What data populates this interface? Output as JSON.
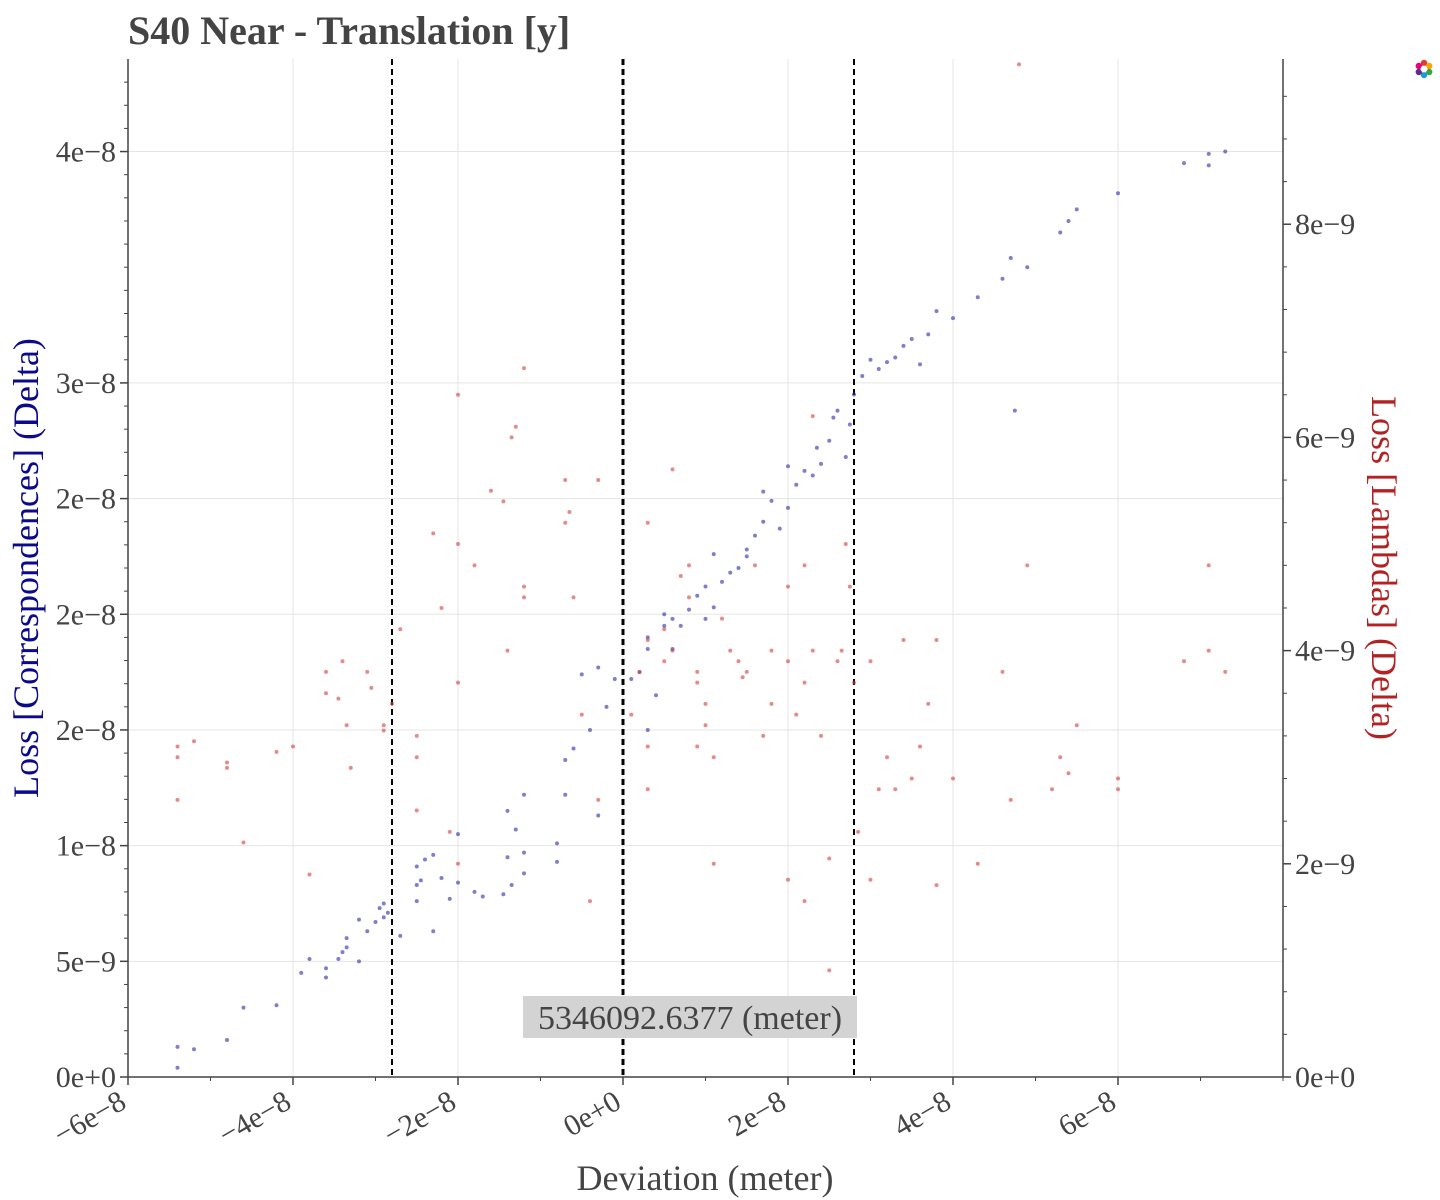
{
  "chart_data": {
    "type": "scatter",
    "title": "S40 Near - Translation [y]",
    "xlabel": "Deviation (meter)",
    "ylabel_left": "Loss [Correspondences] (Delta)",
    "ylabel_right": "Loss [Lambdas] (Delta)",
    "xlim": [
      -6e-08,
      8e-08
    ],
    "ylim_left": [
      0,
      4.4e-08
    ],
    "ylim_right": [
      0,
      9.55e-09
    ],
    "x_ticks": [
      -6e-08,
      -4e-08,
      -2e-08,
      0,
      2e-08,
      4e-08,
      6e-08
    ],
    "x_tick_labels": [
      "−6e−8",
      "−4e−8",
      "−2e−8",
      "0e+0",
      "2e−8",
      "4e−8",
      "6e−8"
    ],
    "y_left_ticks": [
      0,
      5e-09,
      1e-08,
      1.5e-08,
      2e-08,
      2.5e-08,
      3e-08,
      4e-08
    ],
    "y_left_tick_labels": [
      "0e+0",
      "5e−9",
      "1e−8",
      "2e−8",
      "2e−8",
      "2e−8",
      "3e−8",
      "4e−8"
    ],
    "y_right_ticks": [
      0,
      2e-09,
      4e-09,
      6e-09,
      8e-09
    ],
    "y_right_tick_labels": [
      "0e+0",
      "2e−9",
      "4e−9",
      "6e−9",
      "8e−9"
    ],
    "grid": true,
    "vlines": [
      {
        "x": -2.8e-08,
        "style": "dashed"
      },
      {
        "x": 0,
        "style": "dashed"
      },
      {
        "x": 2.8e-08,
        "style": "dashed"
      }
    ],
    "annotation": {
      "text": "5346092.6377 (meter)",
      "x": 0
    },
    "colors": {
      "correspondences": "#2a2aa8",
      "lambdas": "#d04040",
      "left_axis_title": "#0a0a8a",
      "right_axis_title": "#b22222"
    },
    "series": [
      {
        "name": "Loss [Correspondences] (Delta)",
        "axis": "left",
        "points": [
          [
            -5.4e-08,
            4e-10
          ],
          [
            -5.4e-08,
            1.3e-09
          ],
          [
            -5.2e-08,
            1.2e-09
          ],
          [
            -4.8e-08,
            1.6e-09
          ],
          [
            -4.6e-08,
            3e-09
          ],
          [
            -4.2e-08,
            3.1e-09
          ],
          [
            -3.9e-08,
            4.5e-09
          ],
          [
            -3.8e-08,
            5.1e-09
          ],
          [
            -3.6e-08,
            4.7e-09
          ],
          [
            -3.6e-08,
            4.3e-09
          ],
          [
            -3.45e-08,
            5.1e-09
          ],
          [
            -3.4e-08,
            5.4e-09
          ],
          [
            -3.35e-08,
            6e-09
          ],
          [
            -3.35e-08,
            5.6e-09
          ],
          [
            -3.2e-08,
            5e-09
          ],
          [
            -3.2e-08,
            6.8e-09
          ],
          [
            -3.1e-08,
            6.3e-09
          ],
          [
            -3e-08,
            6.7e-09
          ],
          [
            -2.95e-08,
            7.3e-09
          ],
          [
            -2.9e-08,
            7.5e-09
          ],
          [
            -2.9e-08,
            6.9e-09
          ],
          [
            -2.85e-08,
            7.1e-09
          ],
          [
            -2.7e-08,
            6.1e-09
          ],
          [
            -2.5e-08,
            7.6e-09
          ],
          [
            -2.5e-08,
            8.3e-09
          ],
          [
            -2.5e-08,
            9.1e-09
          ],
          [
            -2.45e-08,
            8.5e-09
          ],
          [
            -2.4e-08,
            9.4e-09
          ],
          [
            -2.3e-08,
            9.6e-09
          ],
          [
            -2.3e-08,
            6.3e-09
          ],
          [
            -2.2e-08,
            8.6e-09
          ],
          [
            -2.1e-08,
            7.7e-09
          ],
          [
            -2e-08,
            8.4e-09
          ],
          [
            -2e-08,
            1.05e-08
          ],
          [
            -1.8e-08,
            8e-09
          ],
          [
            -1.7e-08,
            7.8e-09
          ],
          [
            -1.45e-08,
            7.9e-09
          ],
          [
            -1.4e-08,
            9.5e-09
          ],
          [
            -1.4e-08,
            1.15e-08
          ],
          [
            -1.35e-08,
            8.3e-09
          ],
          [
            -1.3e-08,
            1.07e-08
          ],
          [
            -1.2e-08,
            8.8e-09
          ],
          [
            -1.2e-08,
            9.7e-09
          ],
          [
            -1.2e-08,
            1.22e-08
          ],
          [
            -8e-09,
            9.3e-09
          ],
          [
            -8e-09,
            1.01e-08
          ],
          [
            -7e-09,
            1.37e-08
          ],
          [
            -7e-09,
            1.22e-08
          ],
          [
            -6e-09,
            1.42e-08
          ],
          [
            -5e-09,
            1.74e-08
          ],
          [
            -4e-09,
            1.5e-08
          ],
          [
            -3e-09,
            1.13e-08
          ],
          [
            -3e-09,
            1.77e-08
          ],
          [
            -2e-09,
            1.6e-08
          ],
          [
            -1e-09,
            1.72e-08
          ],
          [
            1e-09,
            1.72e-08
          ],
          [
            2e-09,
            1.75e-08
          ],
          [
            3e-09,
            1.85e-08
          ],
          [
            3e-09,
            1.9e-08
          ],
          [
            3e-09,
            1.5e-08
          ],
          [
            4e-09,
            1.65e-08
          ],
          [
            5e-09,
            1.95e-08
          ],
          [
            5e-09,
            2e-08
          ],
          [
            6e-09,
            1.85e-08
          ],
          [
            6e-09,
            1.98e-08
          ],
          [
            7e-09,
            1.95e-08
          ],
          [
            8e-09,
            2.02e-08
          ],
          [
            9e-09,
            2.08e-08
          ],
          [
            1e-08,
            1.98e-08
          ],
          [
            1e-08,
            2.12e-08
          ],
          [
            1.1e-08,
            2.03e-08
          ],
          [
            1.1e-08,
            2.26e-08
          ],
          [
            1.2e-08,
            2.14e-08
          ],
          [
            1.3e-08,
            2.18e-08
          ],
          [
            1.4e-08,
            2.2e-08
          ],
          [
            1.5e-08,
            2.28e-08
          ],
          [
            1.5e-08,
            2.25e-08
          ],
          [
            1.6e-08,
            2.34e-08
          ],
          [
            1.7e-08,
            2.4e-08
          ],
          [
            1.7e-08,
            2.53e-08
          ],
          [
            1.8e-08,
            2.49e-08
          ],
          [
            1.9e-08,
            2.37e-08
          ],
          [
            2e-08,
            2.46e-08
          ],
          [
            2e-08,
            2.64e-08
          ],
          [
            2.1e-08,
            2.56e-08
          ],
          [
            2.2e-08,
            2.62e-08
          ],
          [
            2.3e-08,
            2.6e-08
          ],
          [
            2.35e-08,
            2.72e-08
          ],
          [
            2.4e-08,
            2.65e-08
          ],
          [
            2.5e-08,
            2.75e-08
          ],
          [
            2.55e-08,
            2.85e-08
          ],
          [
            2.6e-08,
            2.88e-08
          ],
          [
            2.7e-08,
            2.68e-08
          ],
          [
            2.75e-08,
            2.82e-08
          ],
          [
            2.8e-08,
            2.95e-08
          ],
          [
            2.9e-08,
            3.03e-08
          ],
          [
            3e-08,
            3.1e-08
          ],
          [
            3.1e-08,
            3.06e-08
          ],
          [
            3.2e-08,
            3.09e-08
          ],
          [
            3.3e-08,
            3.11e-08
          ],
          [
            3.4e-08,
            3.16e-08
          ],
          [
            3.5e-08,
            3.19e-08
          ],
          [
            3.6e-08,
            3.08e-08
          ],
          [
            3.7e-08,
            3.21e-08
          ],
          [
            3.8e-08,
            3.31e-08
          ],
          [
            4e-08,
            3.28e-08
          ],
          [
            4.3e-08,
            3.37e-08
          ],
          [
            4.6e-08,
            3.45e-08
          ],
          [
            4.7e-08,
            3.54e-08
          ],
          [
            4.75e-08,
            2.88e-08
          ],
          [
            4.9e-08,
            3.5e-08
          ],
          [
            5.3e-08,
            3.65e-08
          ],
          [
            5.4e-08,
            3.7e-08
          ],
          [
            5.5e-08,
            3.75e-08
          ],
          [
            6e-08,
            3.82e-08
          ],
          [
            6.8e-08,
            3.95e-08
          ],
          [
            7.1e-08,
            3.94e-08
          ],
          [
            7.1e-08,
            3.99e-08
          ],
          [
            7.3e-08,
            4e-08
          ]
        ]
      },
      {
        "name": "Loss [Lambdas] (Delta)",
        "axis": "right",
        "points": [
          [
            -5.4e-08,
            3.1e-09
          ],
          [
            -5.4e-08,
            3e-09
          ],
          [
            -5.2e-08,
            3.15e-09
          ],
          [
            -5.4e-08,
            2.6e-09
          ],
          [
            -4.8e-08,
            2.9e-09
          ],
          [
            -4.8e-08,
            2.95e-09
          ],
          [
            -4.6e-08,
            2.2e-09
          ],
          [
            -4.2e-08,
            3.05e-09
          ],
          [
            -4e-08,
            3.1e-09
          ],
          [
            -3.8e-08,
            1.9e-09
          ],
          [
            -3.6e-08,
            3.6e-09
          ],
          [
            -3.6e-08,
            3.8e-09
          ],
          [
            -3.45e-08,
            3.55e-09
          ],
          [
            -3.4e-08,
            3.9e-09
          ],
          [
            -3.35e-08,
            3.3e-09
          ],
          [
            -3.3e-08,
            2.9e-09
          ],
          [
            -3.1e-08,
            3.8e-09
          ],
          [
            -3.05e-08,
            3.65e-09
          ],
          [
            -2.9e-08,
            3.25e-09
          ],
          [
            -2.9e-08,
            3.3e-09
          ],
          [
            -2.8e-08,
            3.5e-09
          ],
          [
            -2.7e-08,
            4.2e-09
          ],
          [
            -2.5e-08,
            3e-09
          ],
          [
            -2.5e-08,
            3.2e-09
          ],
          [
            -2.5e-08,
            2.5e-09
          ],
          [
            -2.3e-08,
            5.1e-09
          ],
          [
            -2.2e-08,
            4.4e-09
          ],
          [
            -2.1e-08,
            2.3e-09
          ],
          [
            -2e-08,
            6.4e-09
          ],
          [
            -2e-08,
            3.7e-09
          ],
          [
            -2e-08,
            5e-09
          ],
          [
            -2e-08,
            2e-09
          ],
          [
            -1.8e-08,
            4.8e-09
          ],
          [
            -1.6e-08,
            5.5e-09
          ],
          [
            -1.45e-08,
            5.4e-09
          ],
          [
            -1.4e-08,
            4e-09
          ],
          [
            -1.35e-08,
            6e-09
          ],
          [
            -1.3e-08,
            6.1e-09
          ],
          [
            -1.2e-08,
            4.5e-09
          ],
          [
            -1.2e-08,
            4.6e-09
          ],
          [
            -1.2e-08,
            6.65e-09
          ],
          [
            -7e-09,
            5.6e-09
          ],
          [
            -7e-09,
            5.2e-09
          ],
          [
            -6.5e-09,
            5.3e-09
          ],
          [
            -6e-09,
            4.5e-09
          ],
          [
            -5e-09,
            3.4e-09
          ],
          [
            -4e-09,
            1.65e-09
          ],
          [
            -3e-09,
            5.6e-09
          ],
          [
            -3e-09,
            2.6e-09
          ],
          [
            1e-09,
            3.4e-09
          ],
          [
            2e-09,
            3.8e-09
          ],
          [
            3e-09,
            5.2e-09
          ],
          [
            3e-09,
            4.1e-09
          ],
          [
            3e-09,
            3.1e-09
          ],
          [
            3e-09,
            2.7e-09
          ],
          [
            5e-09,
            4.2e-09
          ],
          [
            5e-09,
            3.9e-09
          ],
          [
            6e-09,
            5.7e-09
          ],
          [
            6e-09,
            4e-09
          ],
          [
            7e-09,
            4.7e-09
          ],
          [
            8e-09,
            4.8e-09
          ],
          [
            8e-09,
            4.5e-09
          ],
          [
            9e-09,
            3.8e-09
          ],
          [
            9e-09,
            3.7e-09
          ],
          [
            9e-09,
            3.1e-09
          ],
          [
            1e-08,
            3.5e-09
          ],
          [
            1e-08,
            3.3e-09
          ],
          [
            1.1e-08,
            3e-09
          ],
          [
            1.1e-08,
            2e-09
          ],
          [
            1.2e-08,
            4.3e-09
          ],
          [
            1.3e-08,
            4e-09
          ],
          [
            1.4e-08,
            3.9e-09
          ],
          [
            1.45e-08,
            3.75e-09
          ],
          [
            1.5e-08,
            3.8e-09
          ],
          [
            1.6e-08,
            4.8e-09
          ],
          [
            1.7e-08,
            3.2e-09
          ],
          [
            1.8e-08,
            3.5e-09
          ],
          [
            1.8e-08,
            4e-09
          ],
          [
            2e-08,
            4.6e-09
          ],
          [
            2e-08,
            3.9e-09
          ],
          [
            2e-08,
            1.85e-09
          ],
          [
            2.1e-08,
            3.4e-09
          ],
          [
            2.2e-08,
            4.8e-09
          ],
          [
            2.2e-08,
            3.7e-09
          ],
          [
            2.2e-08,
            1.65e-09
          ],
          [
            2.3e-08,
            4e-09
          ],
          [
            2.3e-08,
            6.2e-09
          ],
          [
            2.4e-08,
            3.2e-09
          ],
          [
            2.5e-08,
            1e-09
          ],
          [
            2.5e-08,
            2.05e-09
          ],
          [
            2.6e-08,
            3.9e-09
          ],
          [
            2.65e-08,
            4e-09
          ],
          [
            2.7e-08,
            5e-09
          ],
          [
            2.75e-08,
            4.6e-09
          ],
          [
            2.8e-08,
            3.7e-09
          ],
          [
            2.85e-08,
            2.3e-09
          ],
          [
            3e-08,
            3.9e-09
          ],
          [
            3e-08,
            1.85e-09
          ],
          [
            3.1e-08,
            2.7e-09
          ],
          [
            3.2e-08,
            3e-09
          ],
          [
            3.3e-08,
            2.7e-09
          ],
          [
            3.4e-08,
            4.1e-09
          ],
          [
            3.5e-08,
            2.8e-09
          ],
          [
            3.6e-08,
            3.1e-09
          ],
          [
            3.7e-08,
            3.5e-09
          ],
          [
            3.8e-08,
            1.8e-09
          ],
          [
            3.8e-08,
            4.1e-09
          ],
          [
            4e-08,
            2.8e-09
          ],
          [
            4.3e-08,
            2e-09
          ],
          [
            4.6e-08,
            3.8e-09
          ],
          [
            4.7e-08,
            2.6e-09
          ],
          [
            4.8e-08,
            9.5e-09
          ],
          [
            4.9e-08,
            4.8e-09
          ],
          [
            5.2e-08,
            2.7e-09
          ],
          [
            5.3e-08,
            3e-09
          ],
          [
            5.4e-08,
            2.85e-09
          ],
          [
            5.5e-08,
            3.3e-09
          ],
          [
            6e-08,
            2.7e-09
          ],
          [
            6e-08,
            2.8e-09
          ],
          [
            6.8e-08,
            3.9e-09
          ],
          [
            7.1e-08,
            4.8e-09
          ],
          [
            7.1e-08,
            4e-09
          ],
          [
            7.3e-08,
            3.8e-09
          ]
        ]
      }
    ]
  }
}
